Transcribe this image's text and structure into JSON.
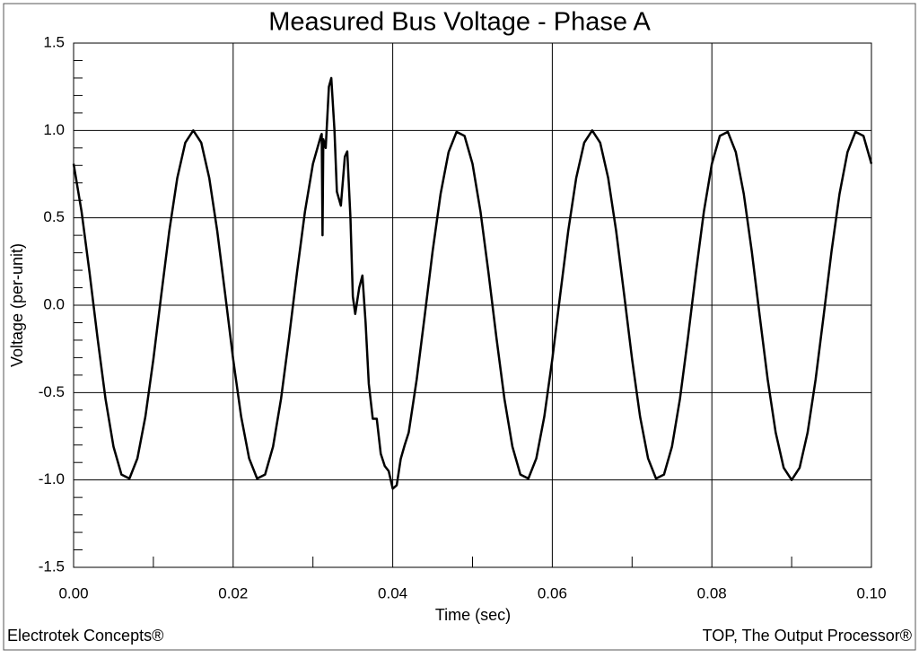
{
  "chart_data": {
    "type": "line",
    "title": "Measured Bus Voltage - Phase A",
    "xlabel": "Time (sec)",
    "ylabel": "Voltage (per-unit)",
    "footer_left": "Electrotek Concepts®",
    "footer_right": "TOP, The Output Processor®",
    "color": "#000000",
    "grid": true,
    "xlim": [
      0,
      0.1
    ],
    "ylim": [
      -1.5,
      1.5
    ],
    "xticks": [
      {
        "value": 0,
        "label": "0.00"
      },
      0.02,
      0.04,
      0.06,
      0.08,
      {
        "value": 0.1,
        "label": "0.10"
      }
    ],
    "yticks": [
      -1.5,
      {
        "value": -1,
        "label": "-1.0"
      },
      -0.5,
      {
        "value": 0,
        "label": "0.0"
      },
      0.5,
      {
        "value": 1,
        "label": "1.0"
      },
      1.5
    ],
    "xminorticks": [
      0.01,
      0.03,
      0.05,
      0.07,
      0.09
    ],
    "yminorticks": [
      -1.4,
      -1.3,
      -1.2,
      -1.1,
      -0.9,
      -0.8,
      -0.7,
      -0.6,
      -0.4,
      -0.3,
      -0.2,
      -0.1,
      0.1,
      0.2,
      0.3,
      0.4,
      0.6,
      0.7,
      0.8,
      0.9,
      1.1,
      1.2,
      1.3,
      1.4
    ],
    "x": [
      0,
      0.001,
      0.002,
      0.003,
      0.004,
      0.005,
      0.006,
      0.007,
      0.008,
      0.009,
      0.01,
      0.011,
      0.012,
      0.013,
      0.014,
      0.015,
      0.016,
      0.017,
      0.018,
      0.019,
      0.02,
      0.021,
      0.022,
      0.023,
      0.024,
      0.025,
      0.026,
      0.027,
      0.028,
      0.029,
      0.03,
      0.031,
      0.0311,
      0.0312,
      0.0313,
      0.0316,
      0.032,
      0.0323,
      0.0327,
      0.033,
      0.0335,
      0.034,
      0.0343,
      0.0347,
      0.035,
      0.0353,
      0.0358,
      0.0362,
      0.0366,
      0.037,
      0.0375,
      0.038,
      0.0385,
      0.039,
      0.0395,
      0.04,
      0.0405,
      0.041,
      0.0415,
      0.042,
      0.043,
      0.044,
      0.045,
      0.046,
      0.047,
      0.048,
      0.049,
      0.05,
      0.051,
      0.052,
      0.053,
      0.054,
      0.055,
      0.056,
      0.057,
      0.058,
      0.059,
      0.06,
      0.061,
      0.062,
      0.063,
      0.064,
      0.065,
      0.066,
      0.067,
      0.068,
      0.069,
      0.07,
      0.071,
      0.072,
      0.073,
      0.074,
      0.075,
      0.076,
      0.077,
      0.078,
      0.079,
      0.08,
      0.081,
      0.082,
      0.083,
      0.084,
      0.085,
      0.086,
      0.087,
      0.088,
      0.089,
      0.09,
      0.091,
      0.092,
      0.093,
      0.094,
      0.095,
      0.096,
      0.097,
      0.098,
      0.099,
      0.1
    ],
    "values": [
      0.809,
      0.536,
      0.187,
      -0.187,
      -0.536,
      -0.809,
      -0.969,
      -0.992,
      -0.876,
      -0.637,
      -0.309,
      0.063,
      0.426,
      0.729,
      0.93,
      1,
      0.93,
      0.729,
      0.426,
      0.063,
      -0.309,
      -0.637,
      -0.876,
      -0.992,
      -0.969,
      -0.809,
      -0.536,
      -0.187,
      0.187,
      0.536,
      0.809,
      0.97,
      0.98,
      0.4,
      0.95,
      0.9,
      1.25,
      1.3,
      1.0,
      0.65,
      0.57,
      0.85,
      0.88,
      0.5,
      0.05,
      -0.05,
      0.1,
      0.17,
      -0.1,
      -0.45,
      -0.65,
      -0.65,
      -0.85,
      -0.92,
      -0.95,
      -1.05,
      -1.03,
      -0.88,
      -0.8,
      -0.729,
      -0.426,
      -0.063,
      0.309,
      0.637,
      0.876,
      0.992,
      0.969,
      0.809,
      0.536,
      0.187,
      -0.187,
      -0.536,
      -0.809,
      -0.969,
      -0.992,
      -0.876,
      -0.637,
      -0.309,
      0.063,
      0.426,
      0.729,
      0.93,
      1,
      0.93,
      0.729,
      0.426,
      0.063,
      -0.309,
      -0.637,
      -0.876,
      -0.992,
      -0.969,
      -0.809,
      -0.536,
      -0.187,
      0.187,
      0.536,
      0.809,
      0.969,
      0.992,
      0.876,
      0.637,
      0.309,
      -0.063,
      -0.426,
      -0.729,
      -0.93,
      -1,
      -0.93,
      -0.729,
      -0.426,
      -0.063,
      0.309,
      0.637,
      0.876,
      0.992,
      0.969,
      0.809
    ]
  }
}
